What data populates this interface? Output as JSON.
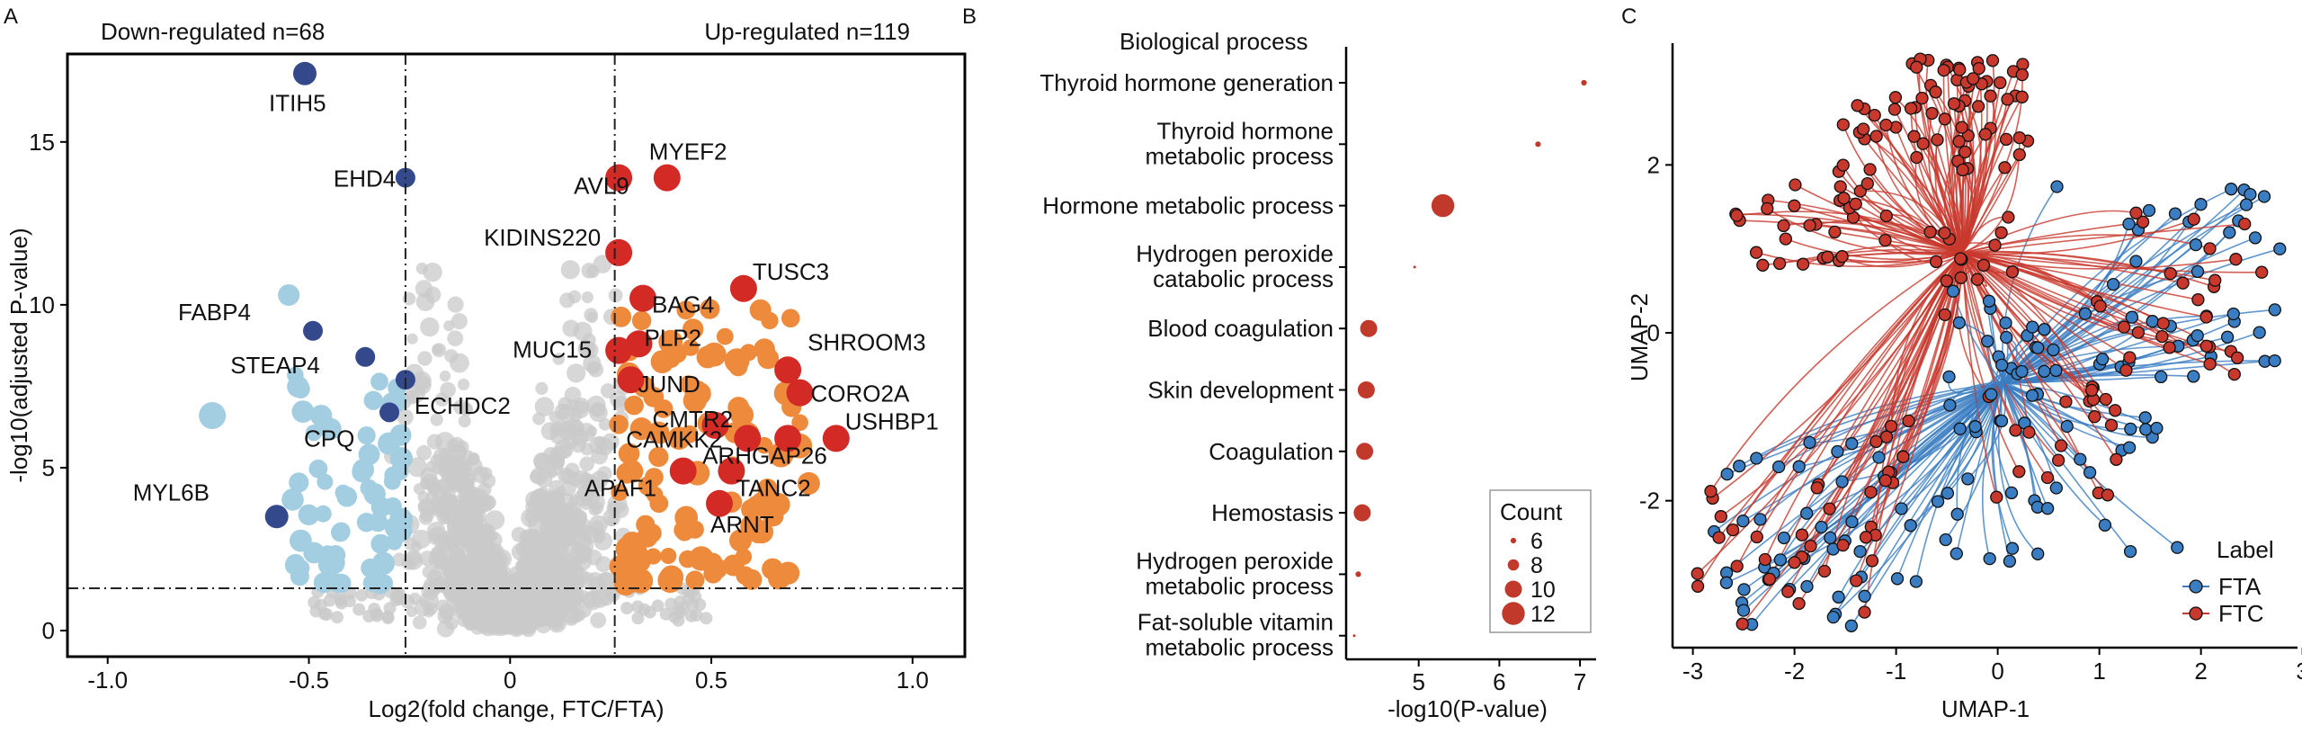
{
  "chart_data": [
    {
      "panel": "A",
      "type": "scatter",
      "title_left": "Down-regulated n=68",
      "title_right": "Up-regulated n=119",
      "xlabel": "Log2(fold change, FTC/FTA)",
      "ylabel": "-log10(adjusted P-value)",
      "xlim": [
        -1.1,
        1.13
      ],
      "ylim": [
        -0.8,
        17.7
      ],
      "xticks": [
        "-1.0",
        "-0.5",
        "0",
        "0.5",
        "1.0"
      ],
      "yticks": [
        "0",
        "5",
        "10",
        "15"
      ],
      "thresholds": {
        "x": [
          -0.26,
          0.26
        ],
        "y": 1.3
      },
      "colors": {
        "ns": "#c9c9c9",
        "down": "#a3cde0",
        "down_label": "#34488c",
        "up": "#ee8a3c",
        "up_label": "#d42a25"
      },
      "labeled_points": [
        {
          "label": "ITIH5",
          "x": -0.51,
          "y": 17.1,
          "group": "down"
        },
        {
          "label": "EHD4",
          "x": -0.26,
          "y": 13.9,
          "group": "down"
        },
        {
          "label": "FABP4",
          "x": -0.49,
          "y": 9.2,
          "group": "down"
        },
        {
          "label": "STEAP4",
          "x": -0.36,
          "y": 8.4,
          "group": "down"
        },
        {
          "label": "ECHDC2",
          "x": -0.26,
          "y": 7.7,
          "group": "down"
        },
        {
          "label": "CPQ",
          "x": -0.3,
          "y": 6.7,
          "group": "down"
        },
        {
          "label": "MYL6B",
          "x": -0.58,
          "y": 3.5,
          "group": "down"
        },
        {
          "label": "MYEF2",
          "x": 0.39,
          "y": 13.9,
          "group": "up"
        },
        {
          "label": "AVL9",
          "x": 0.27,
          "y": 13.9,
          "group": "up"
        },
        {
          "label": "KIDINS220",
          "x": 0.27,
          "y": 11.6,
          "group": "up"
        },
        {
          "label": "TUSC3",
          "x": 0.58,
          "y": 10.5,
          "group": "up"
        },
        {
          "label": "BAG4",
          "x": 0.33,
          "y": 10.2,
          "group": "up"
        },
        {
          "label": "MUC15",
          "x": 0.27,
          "y": 8.6,
          "group": "up"
        },
        {
          "label": "PLP2",
          "x": 0.32,
          "y": 8.8,
          "group": "up"
        },
        {
          "label": "SHROOM3",
          "x": 0.69,
          "y": 8.0,
          "group": "up"
        },
        {
          "label": "JUND",
          "x": 0.3,
          "y": 7.7,
          "group": "up"
        },
        {
          "label": "CORO2A",
          "x": 0.72,
          "y": 7.3,
          "group": "up"
        },
        {
          "label": "CMTR2",
          "x": 0.51,
          "y": 6.3,
          "group": "up"
        },
        {
          "label": "USHBP1",
          "x": 0.81,
          "y": 5.9,
          "group": "up"
        },
        {
          "label": "CAMKK2",
          "x": 0.59,
          "y": 5.9,
          "group": "up"
        },
        {
          "label": "ARHGAP26",
          "x": 0.69,
          "y": 5.9,
          "group": "up"
        },
        {
          "label": "APAF1",
          "x": 0.43,
          "y": 4.9,
          "group": "up"
        },
        {
          "label": "TANC2",
          "x": 0.55,
          "y": 4.9,
          "group": "up"
        },
        {
          "label": "ARNT",
          "x": 0.52,
          "y": 3.9,
          "group": "up"
        }
      ]
    },
    {
      "panel": "B",
      "type": "scatter",
      "subtitle": "Biological process",
      "xlabel": "-log10(P-value)",
      "xlim": [
        4.1,
        7.2
      ],
      "xticks": [
        "5",
        "6",
        "7"
      ],
      "categories": [
        [
          "Thyroid hormone generation"
        ],
        [
          "Thyroid hormone",
          "metabolic process"
        ],
        [
          "Hormone metabolic process"
        ],
        [
          "Hydrogen peroxide",
          "catabolic process"
        ],
        [
          "Blood coagulation"
        ],
        [
          "Skin development"
        ],
        [
          "Coagulation"
        ],
        [
          "Hemostasis"
        ],
        [
          "Hydrogen peroxide",
          "metabolic process"
        ],
        [
          "Fat-soluble vitamin",
          "metabolic process"
        ]
      ],
      "values": [
        7.05,
        6.48,
        5.3,
        4.95,
        4.38,
        4.35,
        4.33,
        4.3,
        4.25,
        4.2
      ],
      "counts": [
        6,
        6,
        12,
        5,
        10,
        10,
        10,
        10,
        6,
        5
      ],
      "color": "#c0392b",
      "legend": {
        "title": "Count",
        "entries": [
          "6",
          "8",
          "10",
          "12"
        ],
        "values": [
          6,
          8,
          10,
          12
        ]
      }
    },
    {
      "panel": "C",
      "type": "scatter",
      "xlabel": "UMAP-1",
      "ylabel": "UMAP-2",
      "xlim": [
        -3.2,
        2.95
      ],
      "ylim": [
        -3.75,
        3.45
      ],
      "xticks": [
        "-3",
        "-2",
        "-1",
        "0",
        "1",
        "2",
        "3"
      ],
      "yticks": [
        "2",
        "0",
        "-2"
      ],
      "legend": {
        "title": "Label",
        "entries": [
          "FTA",
          "FTC"
        ]
      },
      "colors": {
        "FTA": "#3a7dc2",
        "FTC": "#c8382d"
      }
    }
  ],
  "panels": {
    "a": "A",
    "b": "B",
    "c": "C"
  }
}
